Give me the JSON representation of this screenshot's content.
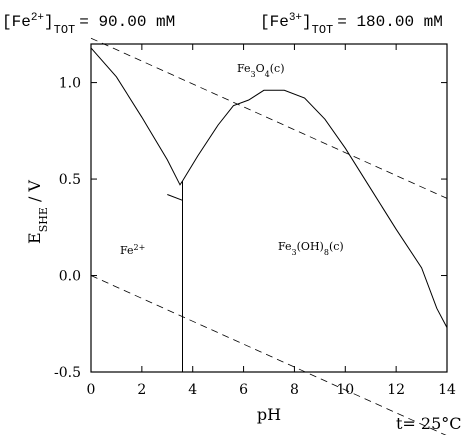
{
  "header": {
    "fe2_prefix": "[Fe",
    "fe2_charge": "2+",
    "fe2_tot": "TOT",
    "fe2_value": "= 90.00 mM",
    "fe3_prefix": "[Fe",
    "fe3_charge": "3+",
    "fe3_tot": "TOT",
    "fe3_value": "= 180.00 mM"
  },
  "axes": {
    "y_main": "E",
    "y_sub": "SHE",
    "y_unit": " / V",
    "x_label": "pH",
    "temperature": "t= 25°C"
  },
  "region_labels": {
    "fe2": {
      "base": "Fe",
      "sup": "2+"
    },
    "fe3o4": {
      "p1": "Fe",
      "s1": "3",
      "p2": "O",
      "s2": "4",
      "p3": "(c)"
    },
    "feoh8": {
      "p1": "Fe",
      "s1": "3",
      "p2": "(OH)",
      "s2": "8",
      "p3": "(c)"
    }
  },
  "chart_data": {
    "type": "line",
    "title": "",
    "xlabel": "pH",
    "ylabel": "E_SHE / V",
    "xlim": [
      0,
      14
    ],
    "ylim": [
      -0.5,
      1.2
    ],
    "x_ticks": [
      0,
      2,
      4,
      6,
      8,
      10,
      12,
      14
    ],
    "x_tick_labels": [
      "0",
      "2",
      "4",
      "6",
      "8",
      "10",
      "12",
      "14"
    ],
    "y_ticks": [
      -0.5,
      0.0,
      0.5,
      1.0
    ],
    "y_tick_labels": [
      "-0.5",
      "0.0",
      "0.5",
      "1.0"
    ],
    "grid": false,
    "series": [
      {
        "style": "solid",
        "x": [
          0,
          1,
          2,
          3,
          3.5,
          3.6,
          4.2,
          5,
          5.6,
          6.2,
          6.8,
          7.6,
          8.4,
          9.2,
          10,
          11,
          12,
          13,
          13.6,
          14
        ],
        "y": [
          1.18,
          1.03,
          0.82,
          0.6,
          0.47,
          0.49,
          0.62,
          0.78,
          0.88,
          0.91,
          0.96,
          0.96,
          0.92,
          0.81,
          0.66,
          0.45,
          0.24,
          0.04,
          -0.17,
          -0.27
        ]
      },
      {
        "style": "solid",
        "x": [
          3.0,
          3.6
        ],
        "y": [
          0.42,
          0.39
        ]
      },
      {
        "style": "solid",
        "x": [
          3.6,
          3.6
        ],
        "y": [
          0.49,
          -0.5
        ]
      },
      {
        "style": "dashed",
        "x": [
          0,
          14
        ],
        "y": [
          1.23,
          0.4
        ]
      },
      {
        "style": "dashed",
        "x": [
          0,
          14
        ],
        "y": [
          0.0,
          -0.83
        ]
      }
    ]
  }
}
